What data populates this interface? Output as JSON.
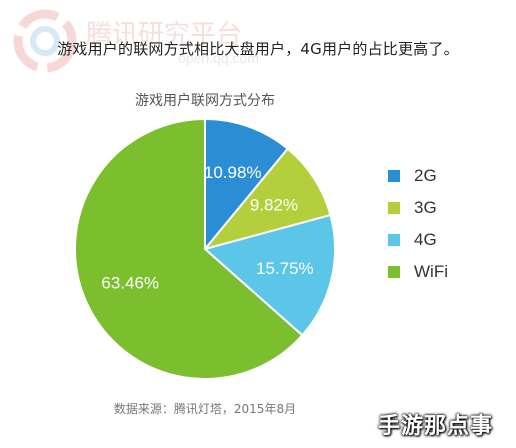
{
  "watermark": {
    "brand_cn": "腾讯研究平台",
    "url": "open.qq.com",
    "corner_text": "手游那点事"
  },
  "headline": "游戏用户的联网方式相比大盘用户，4G用户的占比更高了。",
  "source_note": "数据来源：腾讯灯塔，2015年8月",
  "chart_data": {
    "type": "pie",
    "title": "游戏用户联网方式分布",
    "slices": [
      {
        "label": "2G",
        "value": 10.98,
        "display": "10.98%",
        "color": "#2b8ed4"
      },
      {
        "label": "3G",
        "value": 9.82,
        "display": "9.82%",
        "color": "#b5cf3c"
      },
      {
        "label": "4G",
        "value": 15.75,
        "display": "15.75%",
        "color": "#5bc6e8"
      },
      {
        "label": "WiFi",
        "value": 63.46,
        "display": "63.46%",
        "color": "#7bbf2f"
      }
    ],
    "start_angle": "12 o'clock",
    "direction": "clockwise",
    "legend_position": "right",
    "label_color": "#ffffff"
  }
}
